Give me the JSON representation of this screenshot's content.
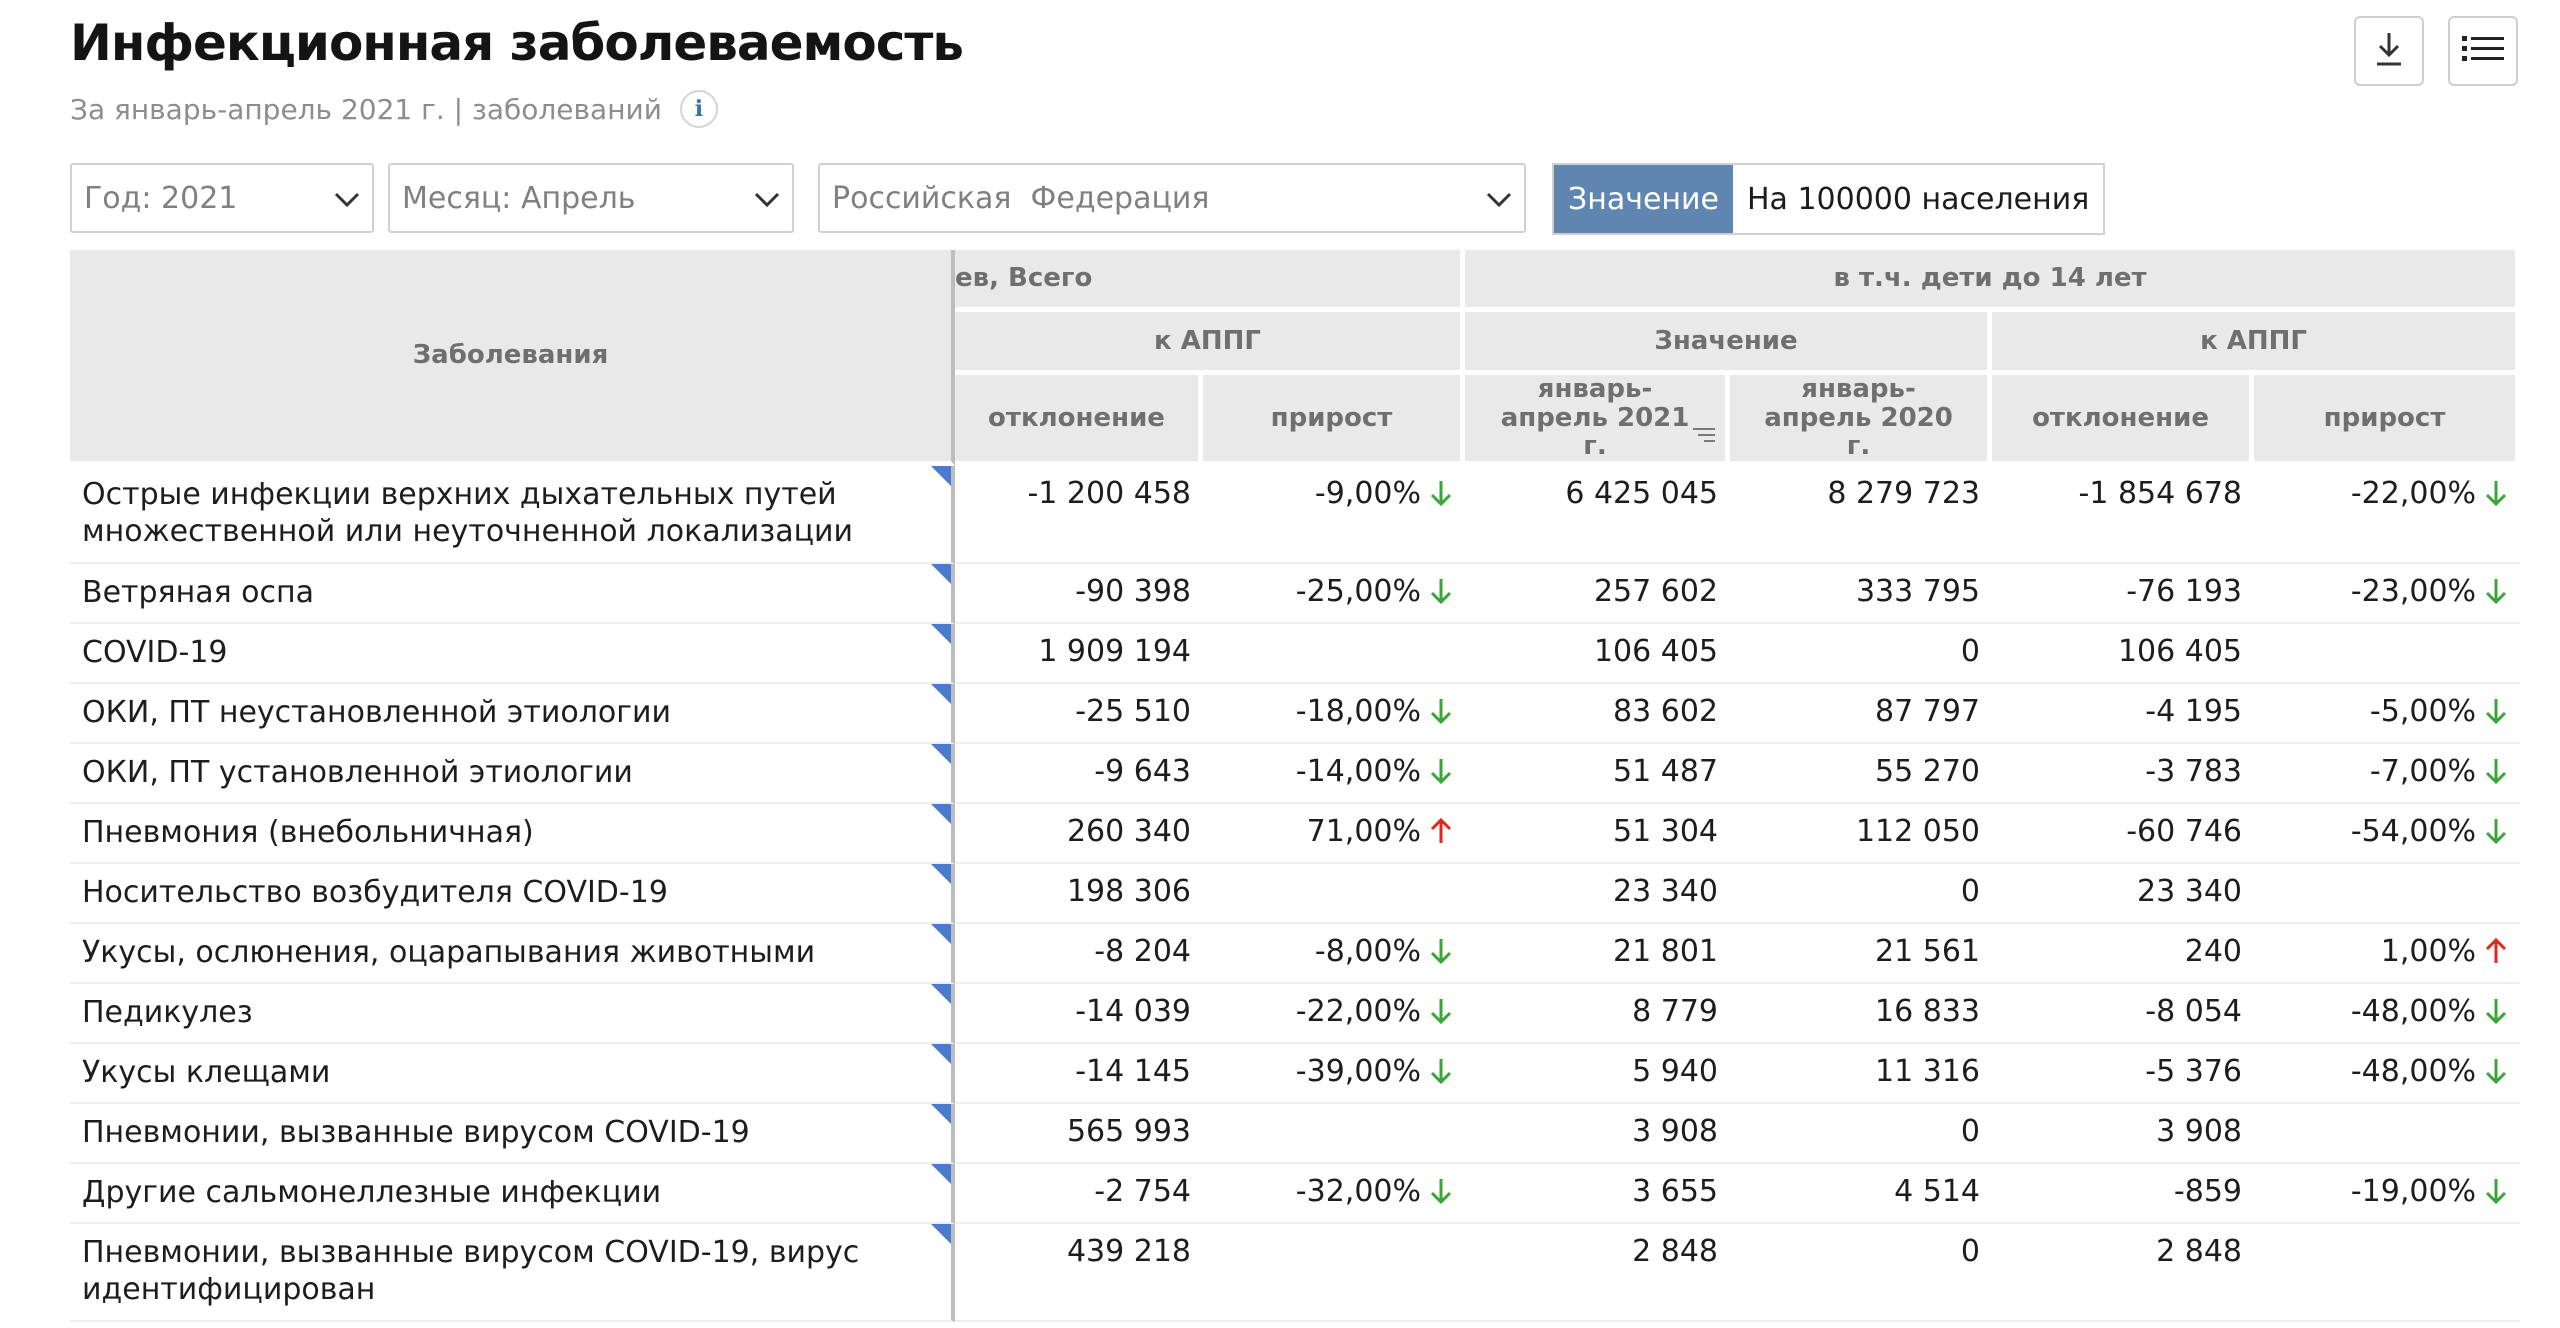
{
  "header": {
    "title": "Инфекционная заболеваемость",
    "subtitle": "За январь-апрель 2021 г. | заболеваний",
    "info_icon": "i"
  },
  "toolbar": {
    "download_icon": "download-icon",
    "list_icon": "list-icon"
  },
  "filters": {
    "year": "Год: 2021",
    "month": "Месяц: Апрель",
    "region": "Российская  Федерация"
  },
  "toggle": {
    "value_label": "Значение",
    "per_capita_label": "На 100000 населения",
    "active": "value"
  },
  "colors": {
    "down": "#3aa63a",
    "up": "#e0261d",
    "accent": "#5f86b1",
    "corner_marker": "#4a7bd0"
  },
  "table": {
    "headers": {
      "diseases": "Заболевания",
      "group_total": "ев, Всего",
      "group_children": "в т.ч. дети до 14 лет",
      "appg": "к АППГ",
      "value": "Значение",
      "appg_children": "к АППГ",
      "deviation": "отклонение",
      "growth": "прирост",
      "jan_apr_2021": "январь-апрель 2021 г.",
      "jan_apr_2020": "январь-апрель 2020 г.",
      "deviation_children": "отклонение",
      "growth_children": "прирост"
    },
    "rows": [
      {
        "name": "Острые инфекции верхних дыхательных путей множественной или неуточненной локализации",
        "dev": "-1 200 458",
        "growth": "-9,00%",
        "dir": "down",
        "v2021": "6 425 045",
        "v2020": "8 279 723",
        "dev_c": "-1 854 678",
        "growth_c": "-22,00%",
        "dir_c": "down"
      },
      {
        "name": "Ветряная оспа",
        "dev": "-90 398",
        "growth": "-25,00%",
        "dir": "down",
        "v2021": "257 602",
        "v2020": "333 795",
        "dev_c": "-76 193",
        "growth_c": "-23,00%",
        "dir_c": "down"
      },
      {
        "name": "COVID-19",
        "dev": "1 909 194",
        "growth": "",
        "dir": "",
        "v2021": "106 405",
        "v2020": "0",
        "dev_c": "106 405",
        "growth_c": "",
        "dir_c": ""
      },
      {
        "name": "ОКИ, ПТ неустановленной этиологии",
        "dev": "-25 510",
        "growth": "-18,00%",
        "dir": "down",
        "v2021": "83 602",
        "v2020": "87 797",
        "dev_c": "-4 195",
        "growth_c": "-5,00%",
        "dir_c": "down"
      },
      {
        "name": "ОКИ, ПТ установленной этиологии",
        "dev": "-9 643",
        "growth": "-14,00%",
        "dir": "down",
        "v2021": "51 487",
        "v2020": "55 270",
        "dev_c": "-3 783",
        "growth_c": "-7,00%",
        "dir_c": "down"
      },
      {
        "name": "Пневмония (внебольничная)",
        "dev": "260 340",
        "growth": "71,00%",
        "dir": "up",
        "v2021": "51 304",
        "v2020": "112 050",
        "dev_c": "-60 746",
        "growth_c": "-54,00%",
        "dir_c": "down"
      },
      {
        "name": "Носительство возбудителя COVID-19",
        "dev": "198 306",
        "growth": "",
        "dir": "",
        "v2021": "23 340",
        "v2020": "0",
        "dev_c": "23 340",
        "growth_c": "",
        "dir_c": ""
      },
      {
        "name": "Укусы, ослюнения, оцарапывания животными",
        "dev": "-8 204",
        "growth": "-8,00%",
        "dir": "down",
        "v2021": "21 801",
        "v2020": "21 561",
        "dev_c": "240",
        "growth_c": "1,00%",
        "dir_c": "up"
      },
      {
        "name": "Педикулез",
        "dev": "-14 039",
        "growth": "-22,00%",
        "dir": "down",
        "v2021": "8 779",
        "v2020": "16 833",
        "dev_c": "-8 054",
        "growth_c": "-48,00%",
        "dir_c": "down"
      },
      {
        "name": "Укусы клещами",
        "dev": "-14 145",
        "growth": "-39,00%",
        "dir": "down",
        "v2021": "5 940",
        "v2020": "11 316",
        "dev_c": "-5 376",
        "growth_c": "-48,00%",
        "dir_c": "down"
      },
      {
        "name": "Пневмонии, вызванные вирусом COVID-19",
        "dev": "565 993",
        "growth": "",
        "dir": "",
        "v2021": "3 908",
        "v2020": "0",
        "dev_c": "3 908",
        "growth_c": "",
        "dir_c": ""
      },
      {
        "name": "Другие сальмонеллезные инфекции",
        "dev": "-2 754",
        "growth": "-32,00%",
        "dir": "down",
        "v2021": "3 655",
        "v2020": "4 514",
        "dev_c": "-859",
        "growth_c": "-19,00%",
        "dir_c": "down"
      },
      {
        "name": "Пневмонии, вызванные вирусом COVID-19, вирус идентифицирован",
        "dev": "439 218",
        "growth": "",
        "dir": "",
        "v2021": "2 848",
        "v2020": "0",
        "dev_c": "2 848",
        "growth_c": "",
        "dir_c": ""
      }
    ]
  }
}
